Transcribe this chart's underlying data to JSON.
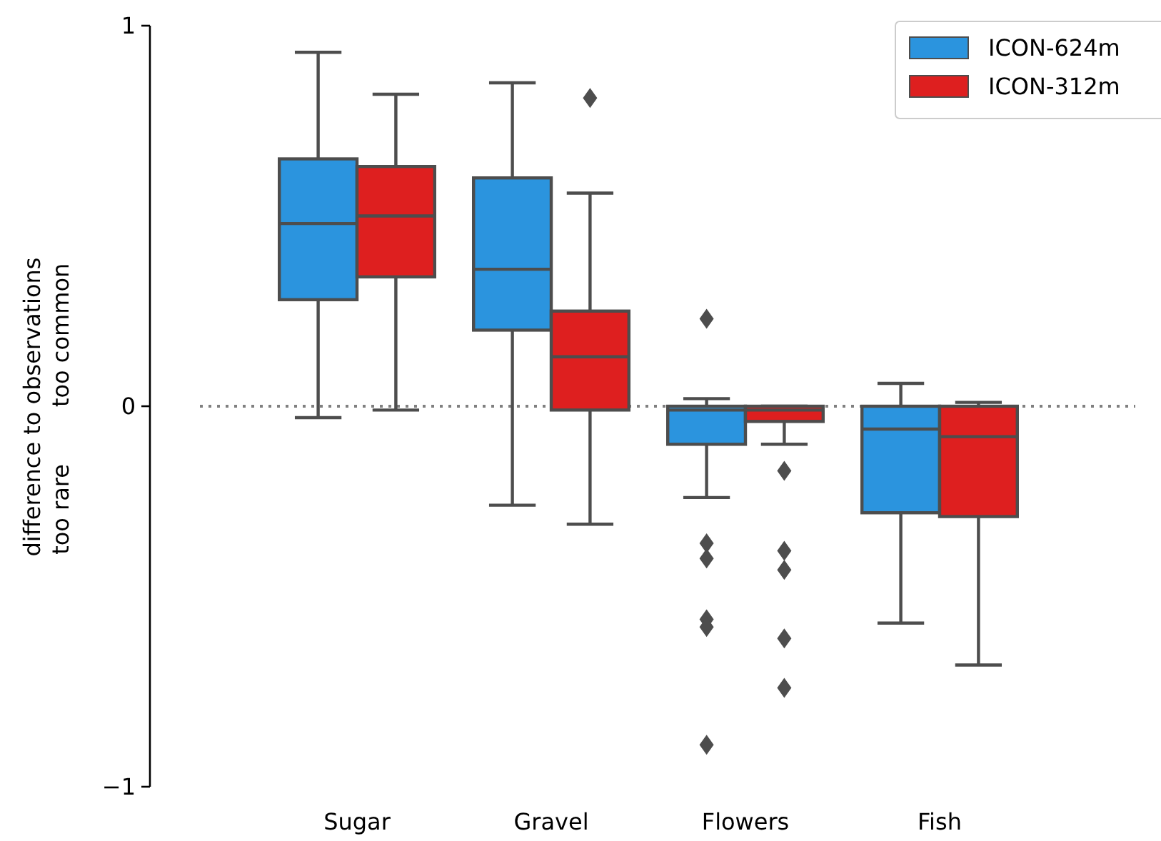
{
  "chart_data": {
    "type": "box",
    "categories": [
      "Sugar",
      "Gravel",
      "Flowers",
      "Fish"
    ],
    "ylabel": "difference to observations",
    "annotations": [
      "too common",
      "too rare"
    ],
    "ylim": [
      -1,
      1
    ],
    "yticks": [
      {
        "value": -1,
        "label": "−1"
      },
      0,
      1
    ],
    "grid": false,
    "legend": "top right",
    "series": [
      {
        "name": "ICON-624m",
        "color": "#2b94de",
        "boxes": [
          {
            "low": -0.03,
            "q1": 0.28,
            "median": 0.48,
            "q3": 0.65,
            "high": 0.93
          },
          {
            "low": -0.26,
            "q1": 0.2,
            "median": 0.36,
            "q3": 0.6,
            "high": 0.85
          },
          {
            "low": -0.24,
            "q1": -0.1,
            "median": -0.01,
            "q3": 0,
            "high": 0.02,
            "outliers": [
              0.23,
              -0.36,
              -0.4,
              -0.56,
              -0.58,
              -0.89
            ]
          },
          {
            "low": -0.57,
            "q1": -0.28,
            "median": -0.06,
            "q3": 0,
            "high": 0.06
          }
        ]
      },
      {
        "name": "ICON-312m",
        "color": "#de1f1f",
        "boxes": [
          {
            "low": -0.01,
            "q1": 0.34,
            "median": 0.5,
            "q3": 0.63,
            "high": 0.82
          },
          {
            "low": -0.31,
            "q1": -0.01,
            "median": 0.13,
            "q3": 0.25,
            "high": 0.56,
            "outliers": [
              0.81
            ]
          },
          {
            "low": -0.1,
            "q1": -0.04,
            "median": -0.01,
            "q3": 0,
            "high": 0,
            "outliers": [
              -0.17,
              -0.38,
              -0.43,
              -0.61,
              -0.74
            ]
          },
          {
            "low": -0.68,
            "q1": -0.29,
            "median": -0.08,
            "q3": 0,
            "high": 0.01
          }
        ]
      }
    ],
    "ref_lines": [
      {
        "axis": "y",
        "value": 0,
        "color": "#808080",
        "line_style": "dotted"
      }
    ]
  }
}
